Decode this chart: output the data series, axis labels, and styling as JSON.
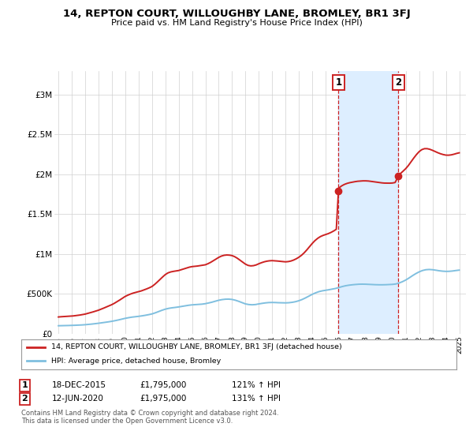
{
  "title": "14, REPTON COURT, WILLOUGHBY LANE, BROMLEY, BR1 3FJ",
  "subtitle": "Price paid vs. HM Land Registry's House Price Index (HPI)",
  "hpi_color": "#7fbfdf",
  "price_color": "#cc2222",
  "background_color": "#ffffff",
  "annotation_bg": "#ddeeff",
  "annotation_border": "#cc2222",
  "marker1": {
    "date_num": 2015.96,
    "value": 1795000,
    "label": "1",
    "date_str": "18-DEC-2015",
    "pct": "121% ↑ HPI"
  },
  "marker2": {
    "date_num": 2020.44,
    "value": 1975000,
    "label": "2",
    "date_str": "12-JUN-2020",
    "pct": "131% ↑ HPI"
  },
  "legend_line1": "14, REPTON COURT, WILLOUGHBY LANE, BROMLEY, BR1 3FJ (detached house)",
  "legend_line2": "HPI: Average price, detached house, Bromley",
  "footnote1": "Contains HM Land Registry data © Crown copyright and database right 2024.",
  "footnote2": "This data is licensed under the Open Government Licence v3.0.",
  "yticks": [
    0,
    500000,
    1000000,
    1500000,
    2000000,
    2500000,
    3000000
  ],
  "ytick_labels": [
    "£0",
    "£500K",
    "£1M",
    "£1.5M",
    "£2M",
    "£2.5M",
    "£3M"
  ],
  "xmin": 1994.7,
  "xmax": 2025.5,
  "ymin": 0,
  "ymax": 3300000,
  "hpi_data": [
    [
      1995.0,
      100000
    ],
    [
      1995.25,
      101000
    ],
    [
      1995.5,
      102000
    ],
    [
      1995.75,
      103000
    ],
    [
      1996.0,
      104500
    ],
    [
      1996.25,
      106000
    ],
    [
      1996.5,
      108000
    ],
    [
      1996.75,
      110000
    ],
    [
      1997.0,
      113000
    ],
    [
      1997.25,
      117000
    ],
    [
      1997.5,
      121000
    ],
    [
      1997.75,
      126000
    ],
    [
      1998.0,
      131000
    ],
    [
      1998.25,
      137000
    ],
    [
      1998.5,
      143000
    ],
    [
      1998.75,
      149000
    ],
    [
      1999.0,
      156000
    ],
    [
      1999.25,
      164000
    ],
    [
      1999.5,
      173000
    ],
    [
      1999.75,
      183000
    ],
    [
      2000.0,
      193000
    ],
    [
      2000.25,
      201000
    ],
    [
      2000.5,
      208000
    ],
    [
      2000.75,
      213000
    ],
    [
      2001.0,
      218000
    ],
    [
      2001.25,
      224000
    ],
    [
      2001.5,
      231000
    ],
    [
      2001.75,
      239000
    ],
    [
      2002.0,
      248000
    ],
    [
      2002.25,
      262000
    ],
    [
      2002.5,
      278000
    ],
    [
      2002.75,
      294000
    ],
    [
      2003.0,
      308000
    ],
    [
      2003.25,
      318000
    ],
    [
      2003.5,
      325000
    ],
    [
      2003.75,
      330000
    ],
    [
      2004.0,
      336000
    ],
    [
      2004.25,
      343000
    ],
    [
      2004.5,
      350000
    ],
    [
      2004.75,
      357000
    ],
    [
      2005.0,
      362000
    ],
    [
      2005.25,
      365000
    ],
    [
      2005.5,
      368000
    ],
    [
      2005.75,
      371000
    ],
    [
      2006.0,
      377000
    ],
    [
      2006.25,
      386000
    ],
    [
      2006.5,
      396000
    ],
    [
      2006.75,
      408000
    ],
    [
      2007.0,
      420000
    ],
    [
      2007.25,
      428000
    ],
    [
      2007.5,
      433000
    ],
    [
      2007.75,
      434000
    ],
    [
      2008.0,
      430000
    ],
    [
      2008.25,
      420000
    ],
    [
      2008.5,
      406000
    ],
    [
      2008.75,
      390000
    ],
    [
      2009.0,
      374000
    ],
    [
      2009.25,
      366000
    ],
    [
      2009.5,
      363000
    ],
    [
      2009.75,
      366000
    ],
    [
      2010.0,
      374000
    ],
    [
      2010.25,
      381000
    ],
    [
      2010.5,
      387000
    ],
    [
      2010.75,
      391000
    ],
    [
      2011.0,
      392000
    ],
    [
      2011.25,
      391000
    ],
    [
      2011.5,
      389000
    ],
    [
      2011.75,
      388000
    ],
    [
      2012.0,
      387000
    ],
    [
      2012.25,
      389000
    ],
    [
      2012.5,
      394000
    ],
    [
      2012.75,
      402000
    ],
    [
      2013.0,
      414000
    ],
    [
      2013.25,
      430000
    ],
    [
      2013.5,
      450000
    ],
    [
      2013.75,
      472000
    ],
    [
      2014.0,
      494000
    ],
    [
      2014.25,
      513000
    ],
    [
      2014.5,
      528000
    ],
    [
      2014.75,
      538000
    ],
    [
      2015.0,
      545000
    ],
    [
      2015.25,
      552000
    ],
    [
      2015.5,
      560000
    ],
    [
      2015.75,
      568000
    ],
    [
      2016.0,
      580000
    ],
    [
      2016.25,
      592000
    ],
    [
      2016.5,
      602000
    ],
    [
      2016.75,
      609000
    ],
    [
      2017.0,
      614000
    ],
    [
      2017.25,
      618000
    ],
    [
      2017.5,
      621000
    ],
    [
      2017.75,
      622000
    ],
    [
      2018.0,
      621000
    ],
    [
      2018.25,
      619000
    ],
    [
      2018.5,
      617000
    ],
    [
      2018.75,
      615000
    ],
    [
      2019.0,
      614000
    ],
    [
      2019.25,
      614000
    ],
    [
      2019.5,
      615000
    ],
    [
      2019.75,
      617000
    ],
    [
      2020.0,
      619000
    ],
    [
      2020.25,
      624000
    ],
    [
      2020.5,
      636000
    ],
    [
      2020.75,
      653000
    ],
    [
      2021.0,
      674000
    ],
    [
      2021.25,
      700000
    ],
    [
      2021.5,
      728000
    ],
    [
      2021.75,
      754000
    ],
    [
      2022.0,
      776000
    ],
    [
      2022.25,
      793000
    ],
    [
      2022.5,
      803000
    ],
    [
      2022.75,
      806000
    ],
    [
      2023.0,
      803000
    ],
    [
      2023.25,
      797000
    ],
    [
      2023.5,
      790000
    ],
    [
      2023.75,
      785000
    ],
    [
      2024.0,
      782000
    ],
    [
      2024.25,
      783000
    ],
    [
      2024.5,
      787000
    ],
    [
      2024.75,
      793000
    ],
    [
      2025.0,
      798000
    ]
  ],
  "price_data": [
    [
      1995.0,
      210000
    ],
    [
      1995.1,
      212000
    ],
    [
      1995.2,
      213000
    ],
    [
      1995.3,
      214000
    ],
    [
      1995.4,
      215000
    ],
    [
      1995.5,
      216000
    ],
    [
      1995.6,
      217000
    ],
    [
      1995.7,
      218000
    ],
    [
      1995.8,
      219000
    ],
    [
      1995.9,
      220000
    ],
    [
      1996.0,
      221000
    ],
    [
      1996.1,
      223000
    ],
    [
      1996.2,
      225000
    ],
    [
      1996.3,
      227000
    ],
    [
      1996.4,
      229000
    ],
    [
      1996.5,
      231000
    ],
    [
      1996.6,
      234000
    ],
    [
      1996.7,
      237000
    ],
    [
      1996.8,
      240000
    ],
    [
      1996.9,
      243000
    ],
    [
      1997.0,
      246000
    ],
    [
      1997.2,
      255000
    ],
    [
      1997.4,
      264000
    ],
    [
      1997.6,
      274000
    ],
    [
      1997.8,
      284000
    ],
    [
      1998.0,
      295000
    ],
    [
      1998.2,
      308000
    ],
    [
      1998.4,
      322000
    ],
    [
      1998.6,
      336000
    ],
    [
      1998.8,
      350000
    ],
    [
      1999.0,
      365000
    ],
    [
      1999.2,
      383000
    ],
    [
      1999.4,
      403000
    ],
    [
      1999.6,
      424000
    ],
    [
      1999.8,
      446000
    ],
    [
      2000.0,
      468000
    ],
    [
      2000.2,
      484000
    ],
    [
      2000.4,
      498000
    ],
    [
      2000.6,
      510000
    ],
    [
      2000.8,
      519000
    ],
    [
      2001.0,
      527000
    ],
    [
      2001.2,
      537000
    ],
    [
      2001.4,
      549000
    ],
    [
      2001.6,
      562000
    ],
    [
      2001.8,
      576000
    ],
    [
      2002.0,
      592000
    ],
    [
      2002.2,
      618000
    ],
    [
      2002.4,
      648000
    ],
    [
      2002.6,
      680000
    ],
    [
      2002.8,
      712000
    ],
    [
      2003.0,
      742000
    ],
    [
      2003.2,
      763000
    ],
    [
      2003.4,
      775000
    ],
    [
      2003.6,
      782000
    ],
    [
      2003.8,
      787000
    ],
    [
      2004.0,
      793000
    ],
    [
      2004.2,
      803000
    ],
    [
      2004.4,
      814000
    ],
    [
      2004.6,
      825000
    ],
    [
      2004.8,
      835000
    ],
    [
      2005.0,
      842000
    ],
    [
      2005.2,
      845000
    ],
    [
      2005.4,
      849000
    ],
    [
      2005.6,
      854000
    ],
    [
      2005.8,
      859000
    ],
    [
      2006.0,
      865000
    ],
    [
      2006.2,
      879000
    ],
    [
      2006.4,
      896000
    ],
    [
      2006.6,
      916000
    ],
    [
      2006.8,
      937000
    ],
    [
      2007.0,
      958000
    ],
    [
      2007.2,
      974000
    ],
    [
      2007.4,
      984000
    ],
    [
      2007.6,
      988000
    ],
    [
      2007.8,
      986000
    ],
    [
      2008.0,
      980000
    ],
    [
      2008.2,
      966000
    ],
    [
      2008.4,
      946000
    ],
    [
      2008.6,
      922000
    ],
    [
      2008.8,
      897000
    ],
    [
      2009.0,
      873000
    ],
    [
      2009.2,
      857000
    ],
    [
      2009.4,
      851000
    ],
    [
      2009.6,
      854000
    ],
    [
      2009.8,
      863000
    ],
    [
      2010.0,
      878000
    ],
    [
      2010.2,
      891000
    ],
    [
      2010.4,
      902000
    ],
    [
      2010.6,
      910000
    ],
    [
      2010.8,
      915000
    ],
    [
      2011.0,
      917000
    ],
    [
      2011.2,
      915000
    ],
    [
      2011.4,
      912000
    ],
    [
      2011.6,
      908000
    ],
    [
      2011.8,
      905000
    ],
    [
      2012.0,
      902000
    ],
    [
      2012.2,
      905000
    ],
    [
      2012.4,
      912000
    ],
    [
      2012.6,
      924000
    ],
    [
      2012.8,
      940000
    ],
    [
      2013.0,
      960000
    ],
    [
      2013.2,
      985000
    ],
    [
      2013.4,
      1016000
    ],
    [
      2013.6,
      1053000
    ],
    [
      2013.8,
      1093000
    ],
    [
      2014.0,
      1133000
    ],
    [
      2014.2,
      1168000
    ],
    [
      2014.4,
      1196000
    ],
    [
      2014.6,
      1218000
    ],
    [
      2014.8,
      1233000
    ],
    [
      2015.0,
      1244000
    ],
    [
      2015.2,
      1256000
    ],
    [
      2015.4,
      1271000
    ],
    [
      2015.6,
      1289000
    ],
    [
      2015.8,
      1310000
    ],
    [
      2015.96,
      1795000
    ],
    [
      2016.0,
      1830000
    ],
    [
      2016.2,
      1855000
    ],
    [
      2016.4,
      1873000
    ],
    [
      2016.6,
      1886000
    ],
    [
      2016.8,
      1895000
    ],
    [
      2017.0,
      1902000
    ],
    [
      2017.2,
      1908000
    ],
    [
      2017.4,
      1913000
    ],
    [
      2017.6,
      1916000
    ],
    [
      2017.8,
      1918000
    ],
    [
      2018.0,
      1918000
    ],
    [
      2018.2,
      1916000
    ],
    [
      2018.4,
      1912000
    ],
    [
      2018.6,
      1907000
    ],
    [
      2018.8,
      1902000
    ],
    [
      2019.0,
      1897000
    ],
    [
      2019.2,
      1893000
    ],
    [
      2019.4,
      1890000
    ],
    [
      2019.6,
      1889000
    ],
    [
      2019.8,
      1889000
    ],
    [
      2020.0,
      1891000
    ],
    [
      2020.2,
      1897000
    ],
    [
      2020.44,
      1975000
    ],
    [
      2020.6,
      2010000
    ],
    [
      2020.8,
      2040000
    ],
    [
      2021.0,
      2072000
    ],
    [
      2021.2,
      2112000
    ],
    [
      2021.4,
      2158000
    ],
    [
      2021.6,
      2205000
    ],
    [
      2021.8,
      2248000
    ],
    [
      2022.0,
      2285000
    ],
    [
      2022.2,
      2310000
    ],
    [
      2022.4,
      2322000
    ],
    [
      2022.6,
      2322000
    ],
    [
      2022.8,
      2314000
    ],
    [
      2023.0,
      2301000
    ],
    [
      2023.2,
      2286000
    ],
    [
      2023.4,
      2271000
    ],
    [
      2023.6,
      2258000
    ],
    [
      2023.8,
      2248000
    ],
    [
      2024.0,
      2241000
    ],
    [
      2024.2,
      2240000
    ],
    [
      2024.4,
      2244000
    ],
    [
      2024.6,
      2252000
    ],
    [
      2024.8,
      2262000
    ],
    [
      2025.0,
      2270000
    ]
  ]
}
